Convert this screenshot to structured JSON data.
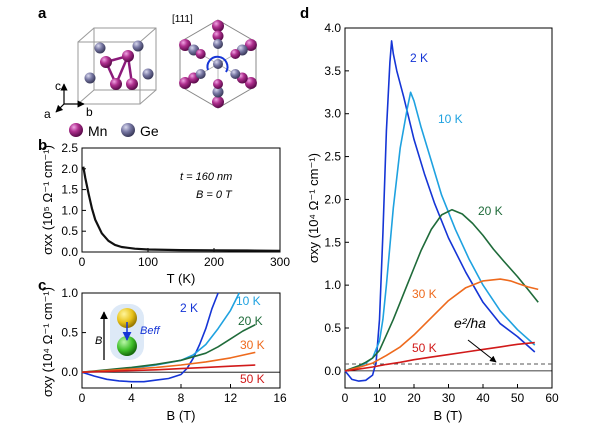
{
  "panels": {
    "a": {
      "letter": "a",
      "axes": [
        "c",
        "a",
        "b"
      ],
      "direction": "[111]",
      "legend": [
        {
          "label": "Mn",
          "color": "#8b1a7a"
        },
        {
          "label": "Ge",
          "color": "#6a6a96"
        }
      ]
    },
    "b": {
      "letter": "b",
      "annotations": [
        "t = 160 nm",
        "B = 0 T"
      ],
      "ylabel": "σxx (10⁵ Ω⁻¹ cm⁻¹)",
      "xlabel": "T (K)"
    },
    "c": {
      "letter": "c",
      "ylabel": "σxy (10⁴ Ω⁻¹ cm⁻¹)",
      "xlabel": "B (T)",
      "inset_labels": [
        "B",
        "Beff"
      ]
    },
    "d": {
      "letter": "d",
      "ylabel": "σxy (10⁴ Ω⁻¹ cm⁻¹)",
      "xlabel": "B (T)",
      "quantum": "e²/ha"
    }
  },
  "chart_data": [
    {
      "panel": "b",
      "type": "line",
      "xlabel": "T (K)",
      "ylabel": "σxx (10⁵ Ω⁻¹ cm⁻¹)",
      "xlim": [
        0,
        300
      ],
      "ylim": [
        0,
        2.5
      ],
      "xticks": [
        0,
        100,
        200,
        300
      ],
      "yticks": [
        0.0,
        0.5,
        1.0,
        1.5,
        2.0,
        2.5
      ],
      "grid": false,
      "series": [
        {
          "color": "#111111",
          "x": [
            2,
            5,
            10,
            15,
            20,
            30,
            40,
            50,
            60,
            80,
            100,
            150,
            200,
            250,
            300
          ],
          "y": [
            2.05,
            1.78,
            1.4,
            1.05,
            0.78,
            0.45,
            0.27,
            0.17,
            0.12,
            0.08,
            0.06,
            0.045,
            0.04,
            0.035,
            0.03
          ]
        }
      ]
    },
    {
      "panel": "c",
      "type": "line",
      "xlabel": "B (T)",
      "ylabel": "σxy (10⁴ Ω⁻¹ cm⁻¹)",
      "xlim": [
        0,
        16
      ],
      "ylim": [
        -0.2,
        1.0
      ],
      "xticks": [
        0,
        4,
        8,
        12,
        16
      ],
      "yticks": [
        0.0,
        0.5,
        1.0
      ],
      "grid": false,
      "series": [
        {
          "name": "2 K",
          "color": "#1535d6",
          "x": [
            0,
            1,
            2,
            3,
            4,
            5,
            6,
            7,
            8,
            8.5,
            9,
            9.5,
            10,
            10.5,
            11
          ],
          "y": [
            0.0,
            -0.05,
            -0.09,
            -0.11,
            -0.12,
            -0.12,
            -0.1,
            -0.08,
            -0.03,
            0.05,
            0.18,
            0.35,
            0.55,
            0.8,
            1.0
          ]
        },
        {
          "name": "10 K",
          "color": "#1fa2e0",
          "x": [
            0,
            2,
            4,
            6,
            8,
            9,
            10,
            11,
            12,
            12.7
          ],
          "y": [
            0.0,
            0.02,
            0.05,
            0.09,
            0.15,
            0.22,
            0.35,
            0.55,
            0.78,
            1.0
          ]
        },
        {
          "name": "20 K",
          "color": "#1f6b3a",
          "x": [
            0,
            2,
            4,
            6,
            8,
            10,
            11,
            12,
            13,
            14
          ],
          "y": [
            0.0,
            0.03,
            0.06,
            0.1,
            0.15,
            0.24,
            0.32,
            0.42,
            0.52,
            0.6
          ]
        },
        {
          "name": "30 K",
          "color": "#ee6a1d",
          "x": [
            0,
            2,
            4,
            6,
            8,
            10,
            12,
            14
          ],
          "y": [
            0.0,
            0.02,
            0.04,
            0.06,
            0.09,
            0.13,
            0.18,
            0.25
          ]
        },
        {
          "name": "50 K",
          "color": "#d11a1a",
          "x": [
            0,
            2,
            4,
            6,
            8,
            10,
            12,
            14
          ],
          "y": [
            0.0,
            0.01,
            0.02,
            0.03,
            0.045,
            0.06,
            0.075,
            0.09
          ]
        }
      ]
    },
    {
      "panel": "d",
      "type": "line",
      "xlabel": "B (T)",
      "ylabel": "σxy (10⁴ Ω⁻¹ cm⁻¹)",
      "xlim": [
        0,
        60
      ],
      "ylim": [
        -0.2,
        4.0
      ],
      "xticks": [
        0,
        10,
        20,
        30,
        40,
        50,
        60
      ],
      "yticks": [
        0.0,
        0.5,
        1.0,
        1.5,
        2.0,
        2.5,
        3.0,
        3.5,
        4.0
      ],
      "grid": false,
      "quantum_value": 0.08,
      "series": [
        {
          "name": "2 K",
          "color": "#1535d6",
          "x": [
            0,
            2,
            4,
            6,
            8,
            9,
            10,
            11,
            12,
            13,
            13.5,
            14,
            15,
            17,
            20,
            23,
            26,
            30,
            35,
            40,
            45,
            50,
            55
          ],
          "y": [
            0,
            -0.1,
            -0.12,
            -0.11,
            -0.05,
            0.1,
            0.6,
            1.6,
            2.8,
            3.6,
            3.85,
            3.7,
            3.5,
            3.2,
            2.7,
            2.3,
            1.95,
            1.55,
            1.15,
            0.8,
            0.55,
            0.4,
            0.22
          ]
        },
        {
          "name": "10 K",
          "color": "#1fa2e0",
          "x": [
            0,
            2,
            4,
            6,
            8,
            10,
            11,
            12,
            14,
            16,
            18,
            19,
            20,
            22,
            25,
            28,
            32,
            36,
            40,
            45,
            50,
            55
          ],
          "y": [
            0,
            0.02,
            0.05,
            0.09,
            0.15,
            0.35,
            0.6,
            1.0,
            1.9,
            2.6,
            3.05,
            3.25,
            3.15,
            2.85,
            2.45,
            2.05,
            1.65,
            1.3,
            1.0,
            0.7,
            0.48,
            0.3
          ]
        },
        {
          "name": "20 K",
          "color": "#1f6b3a",
          "x": [
            0,
            2,
            4,
            6,
            8,
            10,
            12,
            14,
            16,
            18,
            20,
            22,
            25,
            28,
            31,
            34,
            37,
            40,
            43,
            46,
            50,
            53,
            56
          ],
          "y": [
            0,
            0.03,
            0.06,
            0.1,
            0.15,
            0.24,
            0.42,
            0.6,
            0.8,
            1.0,
            1.2,
            1.4,
            1.65,
            1.82,
            1.88,
            1.83,
            1.72,
            1.58,
            1.42,
            1.28,
            1.1,
            0.95,
            0.8
          ]
        },
        {
          "name": "30 K",
          "color": "#ee6a1d",
          "x": [
            0,
            4,
            8,
            12,
            16,
            20,
            25,
            30,
            35,
            40,
            45,
            48,
            50,
            53,
            56
          ],
          "y": [
            0,
            0.04,
            0.09,
            0.18,
            0.28,
            0.42,
            0.62,
            0.82,
            0.97,
            1.05,
            1.07,
            1.05,
            1.02,
            0.98,
            0.95
          ]
        },
        {
          "name": "50 K",
          "color": "#d11a1a",
          "x": [
            0,
            4,
            8,
            12,
            16,
            20,
            25,
            30,
            35,
            40,
            45,
            50,
            55
          ],
          "y": [
            0,
            0.02,
            0.045,
            0.075,
            0.1,
            0.13,
            0.16,
            0.19,
            0.22,
            0.25,
            0.28,
            0.31,
            0.33
          ]
        }
      ]
    }
  ]
}
